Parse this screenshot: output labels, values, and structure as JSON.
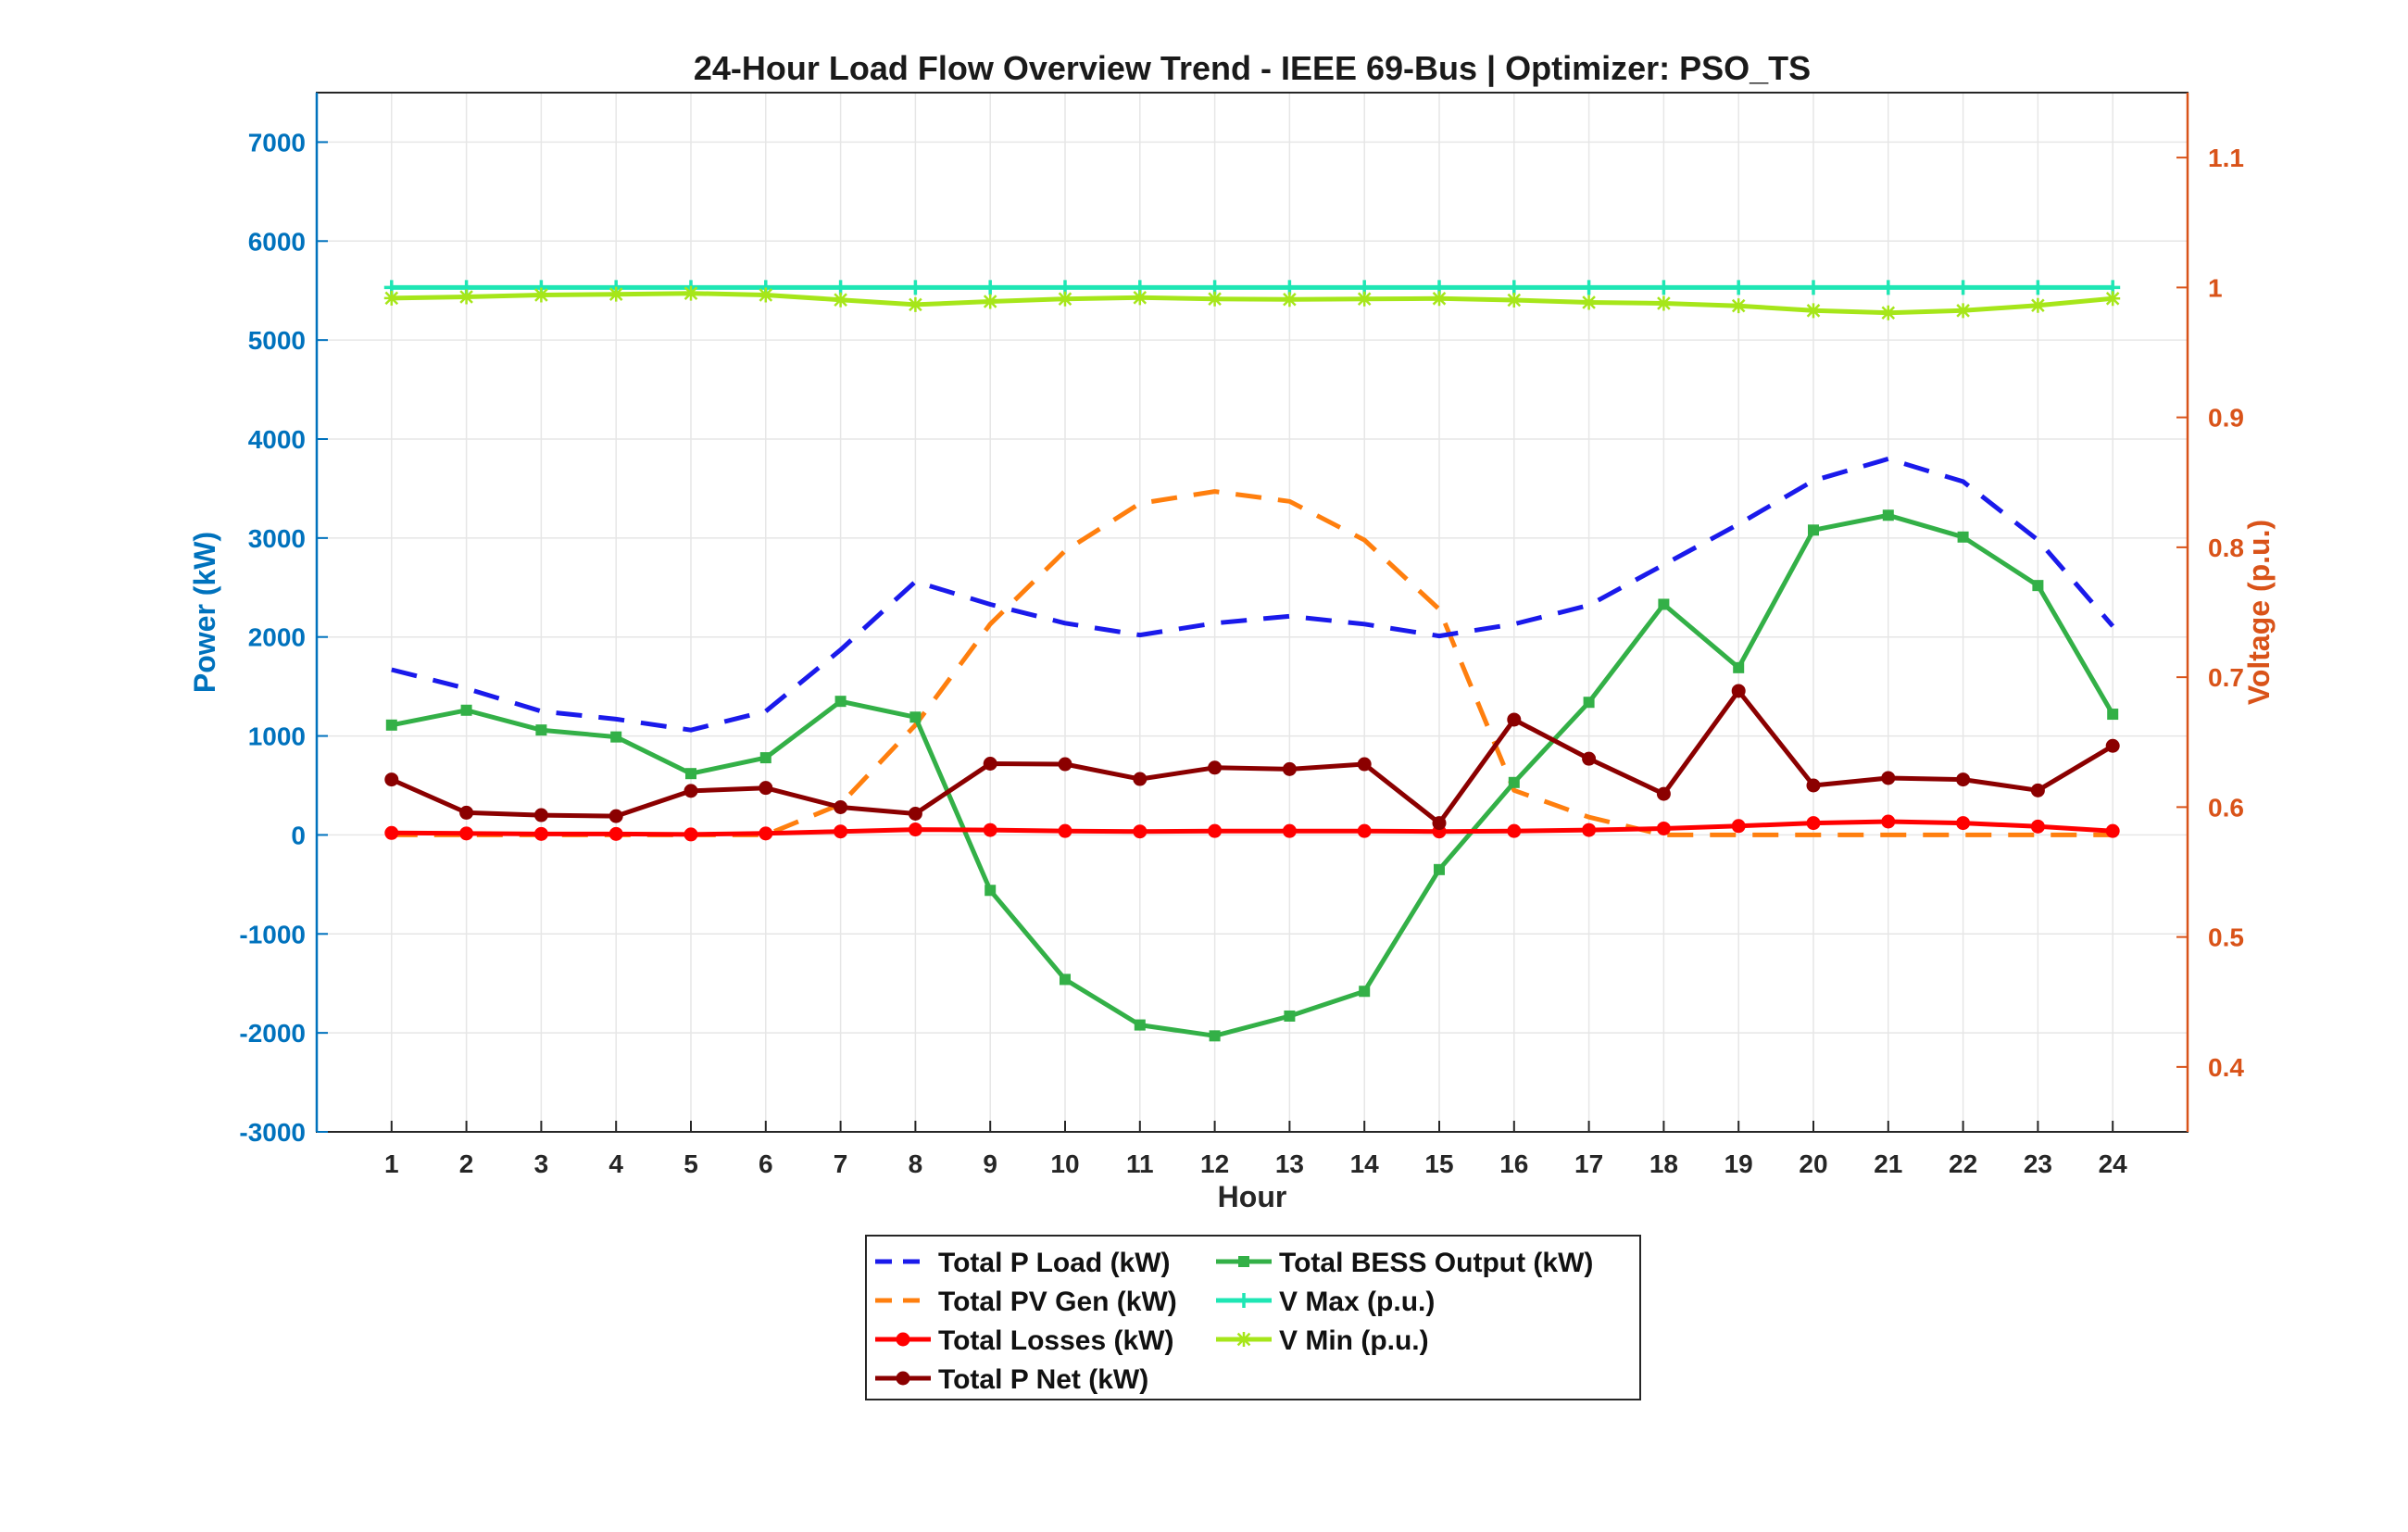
{
  "chart_data": {
    "type": "line",
    "title": "24-Hour Load Flow Overview Trend - IEEE 69-Bus | Optimizer: PSO_TS",
    "xlabel": "Hour",
    "ylabel_left": "Power (kW)",
    "ylabel_right": "Voltage (p.u.)",
    "x": [
      1,
      2,
      3,
      4,
      5,
      6,
      7,
      8,
      9,
      10,
      11,
      12,
      13,
      14,
      15,
      16,
      17,
      18,
      19,
      20,
      21,
      22,
      23,
      24
    ],
    "xlim": [
      0,
      25
    ],
    "ylim_left": [
      -3000,
      7500
    ],
    "ylim_right": [
      0.35,
      1.15
    ],
    "yticks_left": [
      -3000,
      -2000,
      -1000,
      0,
      1000,
      2000,
      3000,
      4000,
      5000,
      6000,
      7000
    ],
    "yticks_right": [
      0.4,
      0.5,
      0.6,
      0.7,
      0.8,
      0.9,
      1,
      1.1
    ],
    "grid": true,
    "legend_placement": "bottom-outside",
    "series": [
      {
        "name": "Total P Load (kW)",
        "axis": "left",
        "color": "#1a1aeb",
        "style": "dashed",
        "marker": "none",
        "values": [
          1670,
          1480,
          1250,
          1170,
          1060,
          1250,
          1870,
          2560,
          2330,
          2140,
          2020,
          2140,
          2210,
          2130,
          2010,
          2130,
          2320,
          2730,
          3140,
          3580,
          3800,
          3570,
          2980,
          2110
        ]
      },
      {
        "name": "Total PV Gen (kW)",
        "axis": "left",
        "color": "#ff7f0e",
        "style": "dashed",
        "marker": "none",
        "values": [
          0,
          0,
          0,
          0,
          0,
          0,
          310,
          1110,
          2130,
          2870,
          3350,
          3470,
          3370,
          2980,
          2280,
          450,
          180,
          0,
          0,
          0,
          0,
          0,
          0,
          0
        ]
      },
      {
        "name": "Total Losses (kW)",
        "axis": "left",
        "color": "#ff0000",
        "style": "solid",
        "marker": "circle",
        "values": [
          20,
          15,
          10,
          10,
          5,
          15,
          35,
          55,
          50,
          40,
          35,
          40,
          40,
          40,
          35,
          40,
          50,
          65,
          90,
          120,
          135,
          120,
          85,
          40
        ]
      },
      {
        "name": "Total P Net (kW)",
        "axis": "left",
        "color": "#8b0000",
        "style": "solid",
        "marker": "circle",
        "values": [
          560,
          225,
          200,
          190,
          445,
          475,
          280,
          215,
          720,
          715,
          565,
          680,
          665,
          715,
          120,
          1165,
          770,
          415,
          1455,
          500,
          575,
          560,
          450,
          900
        ]
      },
      {
        "name": "Total BESS Output (kW)",
        "axis": "left",
        "color": "#33b047",
        "style": "solid",
        "marker": "square",
        "values": [
          1110,
          1260,
          1060,
          990,
          620,
          780,
          1350,
          1190,
          -560,
          -1460,
          -1920,
          -2030,
          -1830,
          -1580,
          -350,
          530,
          1340,
          2330,
          1690,
          3080,
          3230,
          3010,
          2520,
          1220
        ]
      },
      {
        "name": "V Max (p.u.)",
        "axis": "right",
        "color": "#1ee6b4",
        "style": "solid",
        "marker": "plus",
        "values": [
          1,
          1,
          1,
          1,
          1,
          1,
          1,
          1,
          1,
          1,
          1,
          1,
          1,
          1,
          1,
          1,
          1,
          1,
          1,
          1,
          1,
          1,
          1,
          1
        ]
      },
      {
        "name": "V Min (p.u.)",
        "axis": "right",
        "color": "#a6e61a",
        "style": "solid",
        "marker": "star",
        "values": [
          0.9918,
          0.9928,
          0.9942,
          0.9948,
          0.9955,
          0.9942,
          0.9905,
          0.9868,
          0.9892,
          0.9912,
          0.9922,
          0.9912,
          0.9908,
          0.9912,
          0.9915,
          0.9903,
          0.9885,
          0.9878,
          0.9859,
          0.9822,
          0.9805,
          0.9822,
          0.9862,
          0.9915
        ]
      }
    ]
  }
}
